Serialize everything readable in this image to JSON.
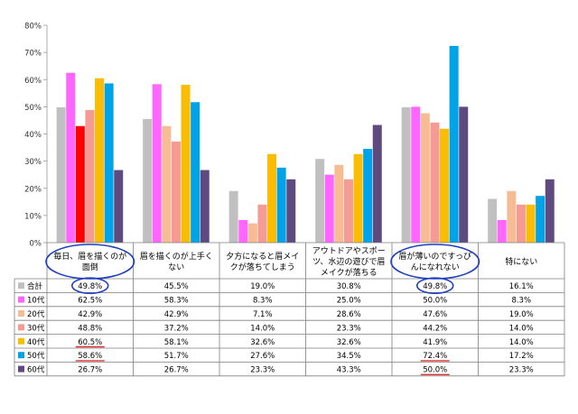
{
  "chart_data": {
    "type": "bar",
    "title": "",
    "xlabel": "",
    "ylabel": "",
    "ylim": [
      0,
      80
    ],
    "y_ticks": [
      "0%",
      "10%",
      "20%",
      "30%",
      "40%",
      "50%",
      "60%",
      "70%",
      "80%"
    ],
    "grid": false,
    "legend": "table-left",
    "categories": [
      [
        "毎日、眉を描くのが",
        "面倒"
      ],
      [
        "眉を描くのが上手く",
        "ない"
      ],
      [
        "夕方になると眉メイ",
        "クが落ちてしまう"
      ],
      [
        "アウトドアやスポー",
        "ツ、水辺の遊びで眉",
        "メイクが落ちる"
      ],
      [
        "眉が薄いのですっぴ",
        "んになれない"
      ],
      [
        "特にない"
      ]
    ],
    "series": [
      {
        "name": "合計",
        "color": "#c0c0c0",
        "values": [
          49.8,
          45.5,
          19.0,
          30.8,
          49.8,
          16.1
        ],
        "labels": [
          "49.8%",
          "45.5%",
          "19.0%",
          "30.8%",
          "49.8%",
          "16.1%"
        ]
      },
      {
        "name": "10代",
        "color": "#ff66ff",
        "values": [
          62.5,
          58.3,
          8.3,
          25.0,
          50.0,
          8.3
        ],
        "labels": [
          "62.5%",
          "58.3%",
          "8.3%",
          "25.0%",
          "50.0%",
          "8.3%"
        ]
      },
      {
        "name": "20代",
        "color": "#f7bc94",
        "values": [
          42.9,
          42.9,
          7.1,
          28.6,
          47.6,
          19.0
        ],
        "labels": [
          "42.9%",
          "42.9%",
          "7.1%",
          "28.6%",
          "47.6%",
          "19.0%"
        ]
      },
      {
        "name": "30代",
        "color": "#f69a94",
        "values": [
          48.8,
          37.2,
          14.0,
          23.3,
          44.2,
          14.0
        ],
        "labels": [
          "48.8%",
          "37.2%",
          "14.0%",
          "23.3%",
          "44.2%",
          "14.0%"
        ]
      },
      {
        "name": "40代",
        "color": "#fbbc04",
        "values": [
          60.5,
          58.1,
          32.6,
          32.6,
          41.9,
          14.0
        ],
        "labels": [
          "60.5%",
          "58.1%",
          "32.6%",
          "32.6%",
          "41.9%",
          "14.0%"
        ]
      },
      {
        "name": "50代",
        "color": "#00a2e8",
        "values": [
          58.6,
          51.7,
          27.6,
          34.5,
          72.4,
          17.2
        ],
        "labels": [
          "58.6%",
          "51.7%",
          "27.6%",
          "34.5%",
          "72.4%",
          "17.2%"
        ]
      },
      {
        "name": "60代",
        "color": "#5e4a7e",
        "values": [
          26.7,
          26.7,
          23.3,
          43.3,
          50.0,
          23.3
        ],
        "labels": [
          "26.7%",
          "26.7%",
          "23.3%",
          "43.3%",
          "50.0%",
          "23.3%"
        ]
      }
    ],
    "highlight_bar_color": "#ff0000",
    "highlight_bar": {
      "series": 2,
      "category": 0
    },
    "annotations": {
      "ellipse_color": "#1f3fbf",
      "underline_color": "#e03030",
      "circled_categories": [
        0,
        4
      ],
      "circled_cells": [
        {
          "series": 0,
          "category": 0
        },
        {
          "series": 0,
          "category": 4
        }
      ],
      "underlined_cells": [
        {
          "series": 4,
          "category": 0
        },
        {
          "series": 5,
          "category": 0
        },
        {
          "series": 5,
          "category": 4
        },
        {
          "series": 6,
          "category": 4
        }
      ]
    }
  }
}
